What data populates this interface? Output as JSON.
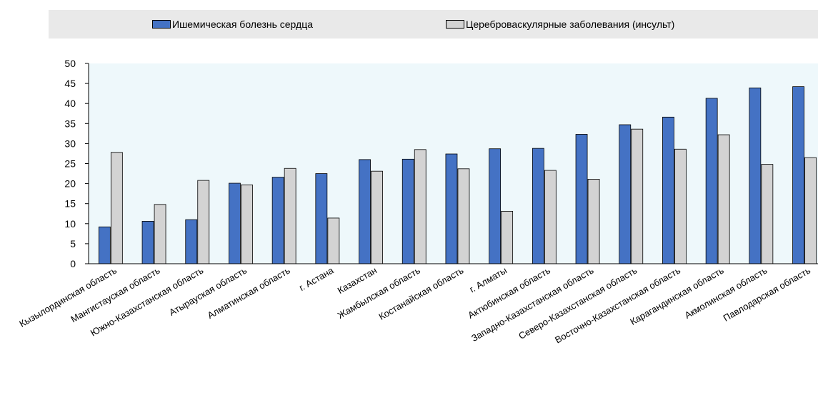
{
  "legend": {
    "series1_label": "Ишемическая болезнь сердца",
    "series2_label": "Цереброваскулярные заболевания (инсульт)"
  },
  "colors": {
    "series1": "#4472c4",
    "series2": "#d3d3d3",
    "plot_background": "#eef8fb",
    "legend_background": "#e9e9e9"
  },
  "chart_data": {
    "type": "bar",
    "title": "",
    "xlabel": "",
    "ylabel": "",
    "ylim": [
      0,
      50
    ],
    "yticks": [
      0,
      5,
      10,
      15,
      20,
      25,
      30,
      35,
      40,
      45,
      50
    ],
    "grid": false,
    "legend_position": "top",
    "categories": [
      "Кызылординская область",
      "Мангистауская область",
      "Южно-Казахстанская область",
      "Атырауская область",
      "Алматинская область",
      "г. Астана",
      "Казахстан",
      "Жамбылская область",
      "Костанайская область",
      "г. Алматы",
      "Актюбинская область",
      "Западно-Казахстанская область",
      "Северо-Казахстанская область",
      "Восточно-Казахстанская область",
      "Карагандинская область",
      "Акмолинская область",
      "Павлодарская область"
    ],
    "series": [
      {
        "name": "Ишемическая болезнь сердца",
        "values": [
          9.2,
          10.6,
          11.0,
          20.1,
          21.6,
          22.5,
          26.0,
          26.1,
          27.4,
          28.7,
          28.8,
          32.3,
          34.7,
          36.6,
          41.3,
          43.9,
          44.2
        ]
      },
      {
        "name": "Цереброваскулярные заболевания (инсульт)",
        "values": [
          27.8,
          14.8,
          20.8,
          19.7,
          23.8,
          11.4,
          23.1,
          28.5,
          23.7,
          13.1,
          23.3,
          21.1,
          33.6,
          28.6,
          32.2,
          24.8,
          26.5
        ]
      }
    ]
  }
}
